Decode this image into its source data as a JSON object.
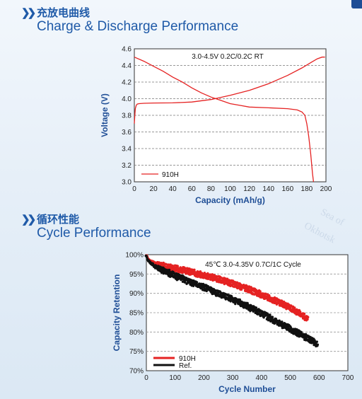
{
  "sections": [
    {
      "zh_title": "充放电曲线",
      "en_title": "Charge & Discharge Performance"
    },
    {
      "zh_title": "循环性能",
      "en_title": "Cycle Performance"
    }
  ],
  "background_text": {
    "w1": "Sea of",
    "w2": "Okhotsk"
  },
  "colors": {
    "title": "#1f5aa8",
    "series_910H": "#e52222",
    "series_ref": "#111111"
  },
  "chart_data": [
    {
      "type": "line",
      "annotation": "3.0-4.5V  0.2C/0.2C  RT",
      "xlabel": "Capacity (mAh/g)",
      "ylabel": "Voltage (V)",
      "xlim": [
        0,
        200
      ],
      "ylim": [
        3.0,
        4.6
      ],
      "x_ticks": [
        0,
        20,
        40,
        60,
        80,
        100,
        120,
        140,
        160,
        180,
        200
      ],
      "y_ticks": [
        3.0,
        3.2,
        3.4,
        3.6,
        3.8,
        4.0,
        4.2,
        4.4,
        4.6
      ],
      "legend_position": "bottom-left",
      "series": [
        {
          "name": "910H",
          "color": "#e52222",
          "segments": [
            {
              "part": "charge",
              "x": [
                0,
                0.5,
                1,
                2,
                3,
                5,
                10,
                20,
                40,
                60,
                80,
                100,
                120,
                140,
                160,
                175,
                185,
                191,
                196,
                199
              ],
              "y": [
                3.7,
                3.8,
                3.88,
                3.92,
                3.935,
                3.94,
                3.945,
                3.948,
                3.95,
                3.96,
                3.99,
                4.04,
                4.1,
                4.18,
                4.28,
                4.37,
                4.44,
                4.48,
                4.5,
                4.5
              ]
            },
            {
              "part": "discharge",
              "x": [
                0,
                10,
                20,
                30,
                40,
                50,
                60,
                70,
                80,
                90,
                100,
                110,
                120,
                140,
                160,
                170,
                175,
                178,
                180,
                182,
                184,
                186,
                187
              ],
              "y": [
                4.5,
                4.45,
                4.39,
                4.33,
                4.26,
                4.2,
                4.13,
                4.07,
                4.02,
                3.98,
                3.94,
                3.92,
                3.9,
                3.89,
                3.88,
                3.865,
                3.84,
                3.8,
                3.7,
                3.55,
                3.35,
                3.1,
                3.0
              ]
            }
          ]
        }
      ]
    },
    {
      "type": "scatter",
      "annotation": "45℃  3.0-4.35V  0.7C/1C Cycle",
      "xlabel": "Cycle  Number",
      "ylabel": "Capacity  Retention",
      "xlim": [
        0,
        700
      ],
      "ylim": [
        70,
        100
      ],
      "x_ticks": [
        0,
        100,
        200,
        300,
        400,
        500,
        600,
        700
      ],
      "y_ticks": [
        70,
        75,
        80,
        85,
        90,
        95,
        100
      ],
      "y_tick_suffix": "%",
      "legend_position": "bottom-left",
      "series": [
        {
          "name": "910H",
          "color": "#e52222",
          "x": [
            0,
            5,
            10,
            20,
            30,
            50,
            75,
            100,
            150,
            200,
            250,
            300,
            350,
            400,
            450,
            500,
            540,
            560
          ],
          "y": [
            99.8,
            99.0,
            98.6,
            98.1,
            97.8,
            97.3,
            96.9,
            96.5,
            95.6,
            94.7,
            93.7,
            92.5,
            91.2,
            89.7,
            88.0,
            86.3,
            84.5,
            83.5
          ]
        },
        {
          "name": "Ref.",
          "color": "#111111",
          "x": [
            0,
            5,
            10,
            20,
            30,
            50,
            75,
            100,
            150,
            200,
            250,
            300,
            350,
            400,
            450,
            500,
            550,
            580,
            595
          ],
          "y": [
            99.7,
            98.7,
            98.2,
            97.5,
            97.0,
            96.2,
            95.4,
            94.5,
            93.0,
            91.6,
            90.0,
            88.4,
            86.7,
            84.8,
            82.8,
            80.8,
            78.8,
            77.6,
            76.8
          ]
        }
      ]
    }
  ]
}
